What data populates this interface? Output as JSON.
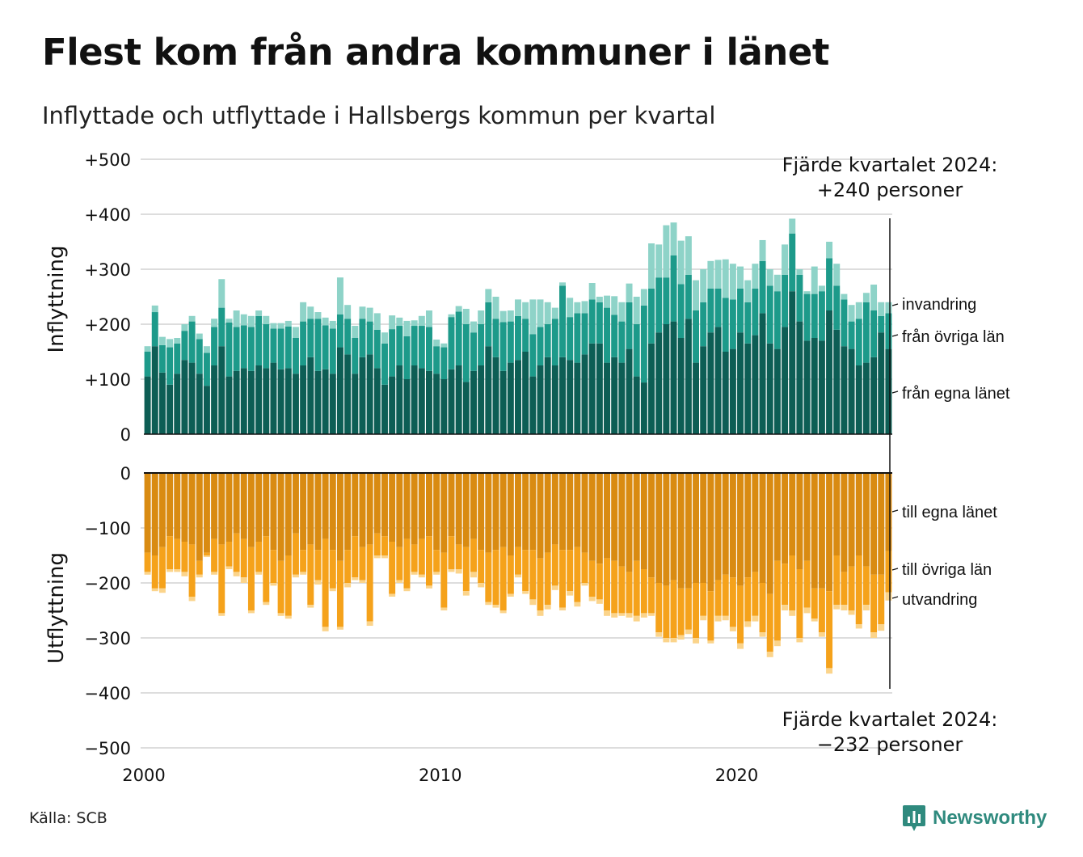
{
  "title": "Flest kom från andra kommuner i länet",
  "subtitle": "Inflyttade och utflyttade i Hallsbergs kommun per kvartal",
  "source": "Källa: SCB",
  "brand": "Newsworthy",
  "chart_data": {
    "type": "bar",
    "stacked": true,
    "x_start": "2000 Q1",
    "x_end": "2024 Q4",
    "x_tick_labels": [
      "2000",
      "2010",
      "2020"
    ],
    "x_tick_years": [
      2000,
      2010,
      2020
    ],
    "grid": true,
    "top_panel": {
      "ylabel": "Inflyttning",
      "ylim": [
        0,
        500
      ],
      "y_ticks": [
        0,
        100,
        200,
        300,
        400,
        500
      ],
      "y_tick_labels": [
        "0",
        "+100",
        "+200",
        "+300",
        "+400",
        "+500"
      ],
      "annotation_line1": "Fjärde kvartalet 2024:",
      "annotation_line2": "+240 personer",
      "series": [
        {
          "name": "från egna länet",
          "color": "#0d5e55",
          "values": [
            105,
            160,
            112,
            90,
            110,
            135,
            130,
            110,
            88,
            125,
            160,
            105,
            115,
            120,
            115,
            125,
            120,
            130,
            118,
            120,
            110,
            125,
            140,
            115,
            118,
            110,
            158,
            145,
            110,
            140,
            145,
            120,
            90,
            105,
            125,
            100,
            125,
            120,
            115,
            110,
            100,
            118,
            125,
            95,
            115,
            125,
            160,
            140,
            115,
            130,
            135,
            150,
            105,
            125,
            140,
            125,
            140,
            135,
            130,
            145,
            165,
            165,
            130,
            140,
            130,
            155,
            105,
            94,
            165,
            185,
            200,
            205,
            175,
            210,
            130,
            160,
            185,
            195,
            150,
            155,
            185,
            165,
            180,
            220,
            165,
            155,
            195,
            260,
            205,
            170,
            175,
            170,
            225,
            190,
            160,
            155,
            125,
            130,
            140,
            185,
            155
          ]
        },
        {
          "name": "från övriga län",
          "color": "#1d9a8a",
          "values": [
            45,
            62,
            50,
            68,
            55,
            53,
            75,
            63,
            60,
            70,
            70,
            98,
            80,
            78,
            80,
            90,
            80,
            62,
            74,
            76,
            65,
            80,
            70,
            95,
            80,
            82,
            60,
            65,
            65,
            70,
            60,
            70,
            75,
            86,
            72,
            78,
            72,
            77,
            80,
            50,
            58,
            95,
            98,
            105,
            70,
            75,
            80,
            70,
            89,
            75,
            80,
            60,
            77,
            70,
            60,
            85,
            130,
            78,
            90,
            75,
            80,
            75,
            100,
            77,
            75,
            85,
            95,
            140,
            100,
            100,
            85,
            120,
            98,
            80,
            95,
            80,
            80,
            70,
            98,
            90,
            80,
            75,
            85,
            95,
            105,
            105,
            95,
            105,
            85,
            85,
            80,
            90,
            95,
            80,
            85,
            50,
            85,
            110,
            85,
            30,
            65
          ]
        },
        {
          "name": "invandring",
          "color": "#8ed3c8",
          "values": [
            10,
            12,
            15,
            15,
            10,
            12,
            10,
            10,
            12,
            15,
            52,
            7,
            30,
            20,
            20,
            10,
            15,
            10,
            10,
            10,
            20,
            35,
            22,
            12,
            14,
            14,
            67,
            25,
            22,
            22,
            25,
            30,
            20,
            25,
            15,
            28,
            10,
            18,
            30,
            12,
            7,
            5,
            10,
            28,
            20,
            25,
            24,
            40,
            20,
            20,
            30,
            30,
            63,
            50,
            40,
            20,
            6,
            35,
            20,
            22,
            30,
            10,
            22,
            34,
            35,
            34,
            50,
            30,
            82,
            60,
            95,
            60,
            79,
            70,
            55,
            60,
            50,
            52,
            70,
            65,
            40,
            40,
            45,
            38,
            30,
            30,
            55,
            27,
            10,
            5,
            50,
            10,
            30,
            40,
            10,
            30,
            30,
            17,
            47,
            25,
            20
          ]
        }
      ]
    },
    "bottom_panel": {
      "ylabel": "Utflyttning",
      "ylim": [
        -500,
        0
      ],
      "y_ticks": [
        0,
        -100,
        -200,
        -300,
        -400,
        -500
      ],
      "y_tick_labels": [
        "0",
        "−100",
        "−200",
        "−300",
        "−400",
        "−500"
      ],
      "annotation_line1": "Fjärde kvartalet 2024:",
      "annotation_line2": "−232 personer",
      "series": [
        {
          "name": "till egna länet",
          "color": "#d98b12",
          "values": [
            -145,
            -150,
            -135,
            -115,
            -120,
            -125,
            -130,
            -160,
            -145,
            -120,
            -130,
            -125,
            -110,
            -120,
            -135,
            -125,
            -115,
            -140,
            -160,
            -150,
            -110,
            -140,
            -130,
            -140,
            -120,
            -140,
            -160,
            -140,
            -115,
            -135,
            -130,
            -110,
            -115,
            -125,
            -135,
            -120,
            -130,
            -120,
            -115,
            -140,
            -145,
            -115,
            -130,
            -135,
            -120,
            -140,
            -145,
            -140,
            -135,
            -150,
            -135,
            -140,
            -140,
            -155,
            -145,
            -130,
            -140,
            -140,
            -135,
            -145,
            -160,
            -165,
            -155,
            -160,
            -170,
            -180,
            -160,
            -175,
            -190,
            -200,
            -205,
            -195,
            -210,
            -210,
            -200,
            -200,
            -215,
            -195,
            -185,
            -190,
            -205,
            -190,
            -180,
            -200,
            -220,
            -160,
            -165,
            -150,
            -175,
            -160,
            -210,
            -210,
            -215,
            -150,
            -180,
            -170,
            -150,
            -170,
            -185,
            -185,
            -142
          ]
        },
        {
          "name": "till övriga län",
          "color": "#f5a21b",
          "values": [
            -35,
            -60,
            -75,
            -60,
            -55,
            -55,
            -95,
            -25,
            -5,
            -60,
            -125,
            -45,
            -70,
            -70,
            -115,
            -55,
            -120,
            -60,
            -95,
            -110,
            -75,
            -40,
            -110,
            -55,
            -160,
            -70,
            -120,
            -60,
            -75,
            -60,
            -140,
            -40,
            -35,
            -95,
            -60,
            -90,
            -50,
            -65,
            -90,
            -40,
            -100,
            -60,
            -45,
            -80,
            -60,
            -60,
            -90,
            -100,
            -115,
            -70,
            -50,
            -75,
            -90,
            -95,
            -95,
            -75,
            -105,
            -75,
            -100,
            -55,
            -65,
            -65,
            -95,
            -95,
            -85,
            -75,
            -100,
            -80,
            -65,
            -90,
            -95,
            -105,
            -85,
            -75,
            -100,
            -60,
            -90,
            -65,
            -75,
            -90,
            -105,
            -80,
            -80,
            -90,
            -105,
            -145,
            -75,
            -100,
            -125,
            -85,
            -55,
            -80,
            -140,
            -90,
            -60,
            -80,
            -125,
            -70,
            -105,
            -90,
            -75
          ]
        },
        {
          "name": "utvandring",
          "color": "#fbd48b",
          "values": [
            -5,
            -5,
            -8,
            -5,
            -5,
            -8,
            -8,
            -5,
            -3,
            -5,
            -5,
            -5,
            -8,
            -10,
            -5,
            -5,
            -5,
            -5,
            -5,
            -5,
            -5,
            -5,
            -5,
            -8,
            -8,
            -5,
            -5,
            -8,
            -5,
            -5,
            -8,
            -5,
            -5,
            -5,
            -5,
            -5,
            -5,
            -5,
            -5,
            -5,
            -5,
            -5,
            -8,
            -8,
            -10,
            -8,
            -5,
            -5,
            -5,
            -5,
            -5,
            -5,
            -10,
            -10,
            -8,
            -8,
            -5,
            -8,
            -8,
            -5,
            -8,
            -8,
            -10,
            -8,
            -5,
            -8,
            -10,
            -8,
            -5,
            -8,
            -8,
            -8,
            -8,
            -8,
            -10,
            -8,
            -5,
            -10,
            -8,
            -8,
            -10,
            -10,
            -10,
            -8,
            -10,
            -10,
            -10,
            -10,
            -8,
            -10,
            -5,
            -8,
            -10,
            -8,
            -10,
            -8,
            -8,
            -10,
            -10,
            -12,
            -15
          ]
        }
      ]
    }
  }
}
